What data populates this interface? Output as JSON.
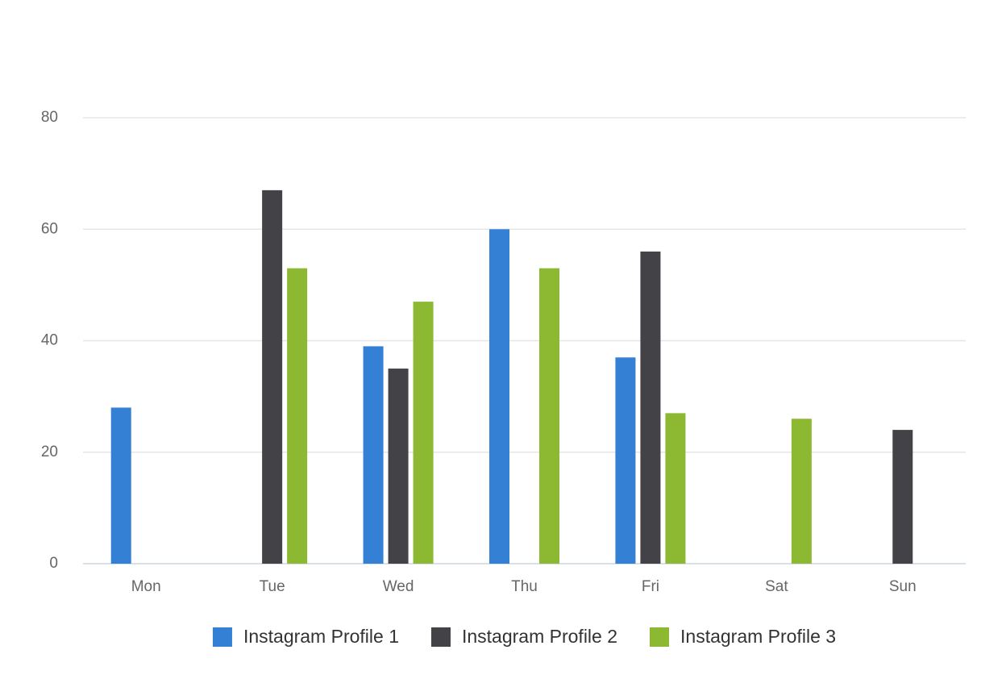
{
  "chart_data": {
    "type": "bar",
    "categories": [
      "Mon",
      "Tue",
      "Wed",
      "Thu",
      "Fri",
      "Sat",
      "Sun"
    ],
    "series": [
      {
        "name": "Instagram Profile 1",
        "color": "#3380d5",
        "values": [
          28,
          0,
          39,
          60,
          37,
          0,
          0
        ]
      },
      {
        "name": "Instagram Profile 2",
        "color": "#434347",
        "values": [
          0,
          67,
          35,
          0,
          56,
          0,
          24
        ]
      },
      {
        "name": "Instagram Profile 3",
        "color": "#8cb832",
        "values": [
          0,
          53,
          47,
          53,
          27,
          26,
          0
        ]
      }
    ],
    "ylim": [
      0,
      80
    ],
    "yticks": [
      0,
      20,
      40,
      60,
      80
    ],
    "grid": true,
    "legend": "bottom"
  }
}
